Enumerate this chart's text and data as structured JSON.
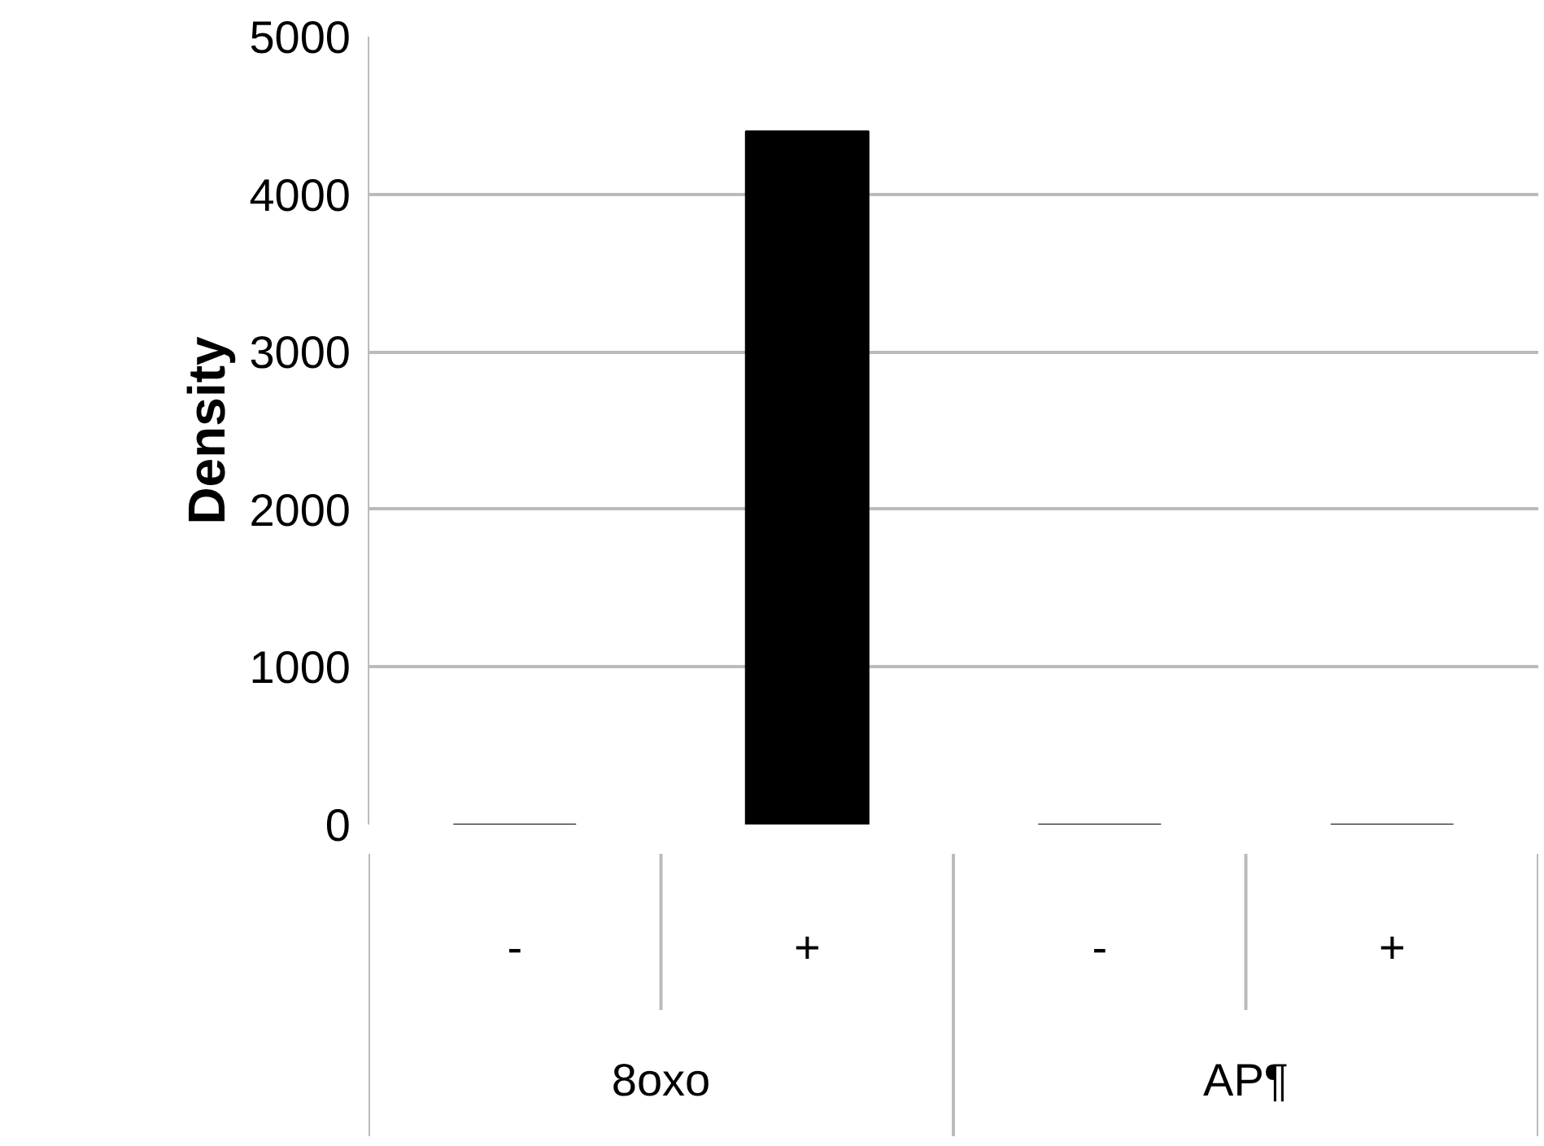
{
  "chart_data": {
    "type": "bar",
    "ylabel": "Density",
    "categories": [
      "-",
      "+",
      "-",
      "+"
    ],
    "values": [
      0,
      4400,
      0,
      0
    ],
    "color": "#000000",
    "ylim": [
      0,
      5000
    ],
    "yticks": [
      0,
      1000,
      2000,
      3000,
      4000,
      5000
    ],
    "grid": "y",
    "annotations": [
      "8oxo",
      "AP¶"
    ]
  }
}
